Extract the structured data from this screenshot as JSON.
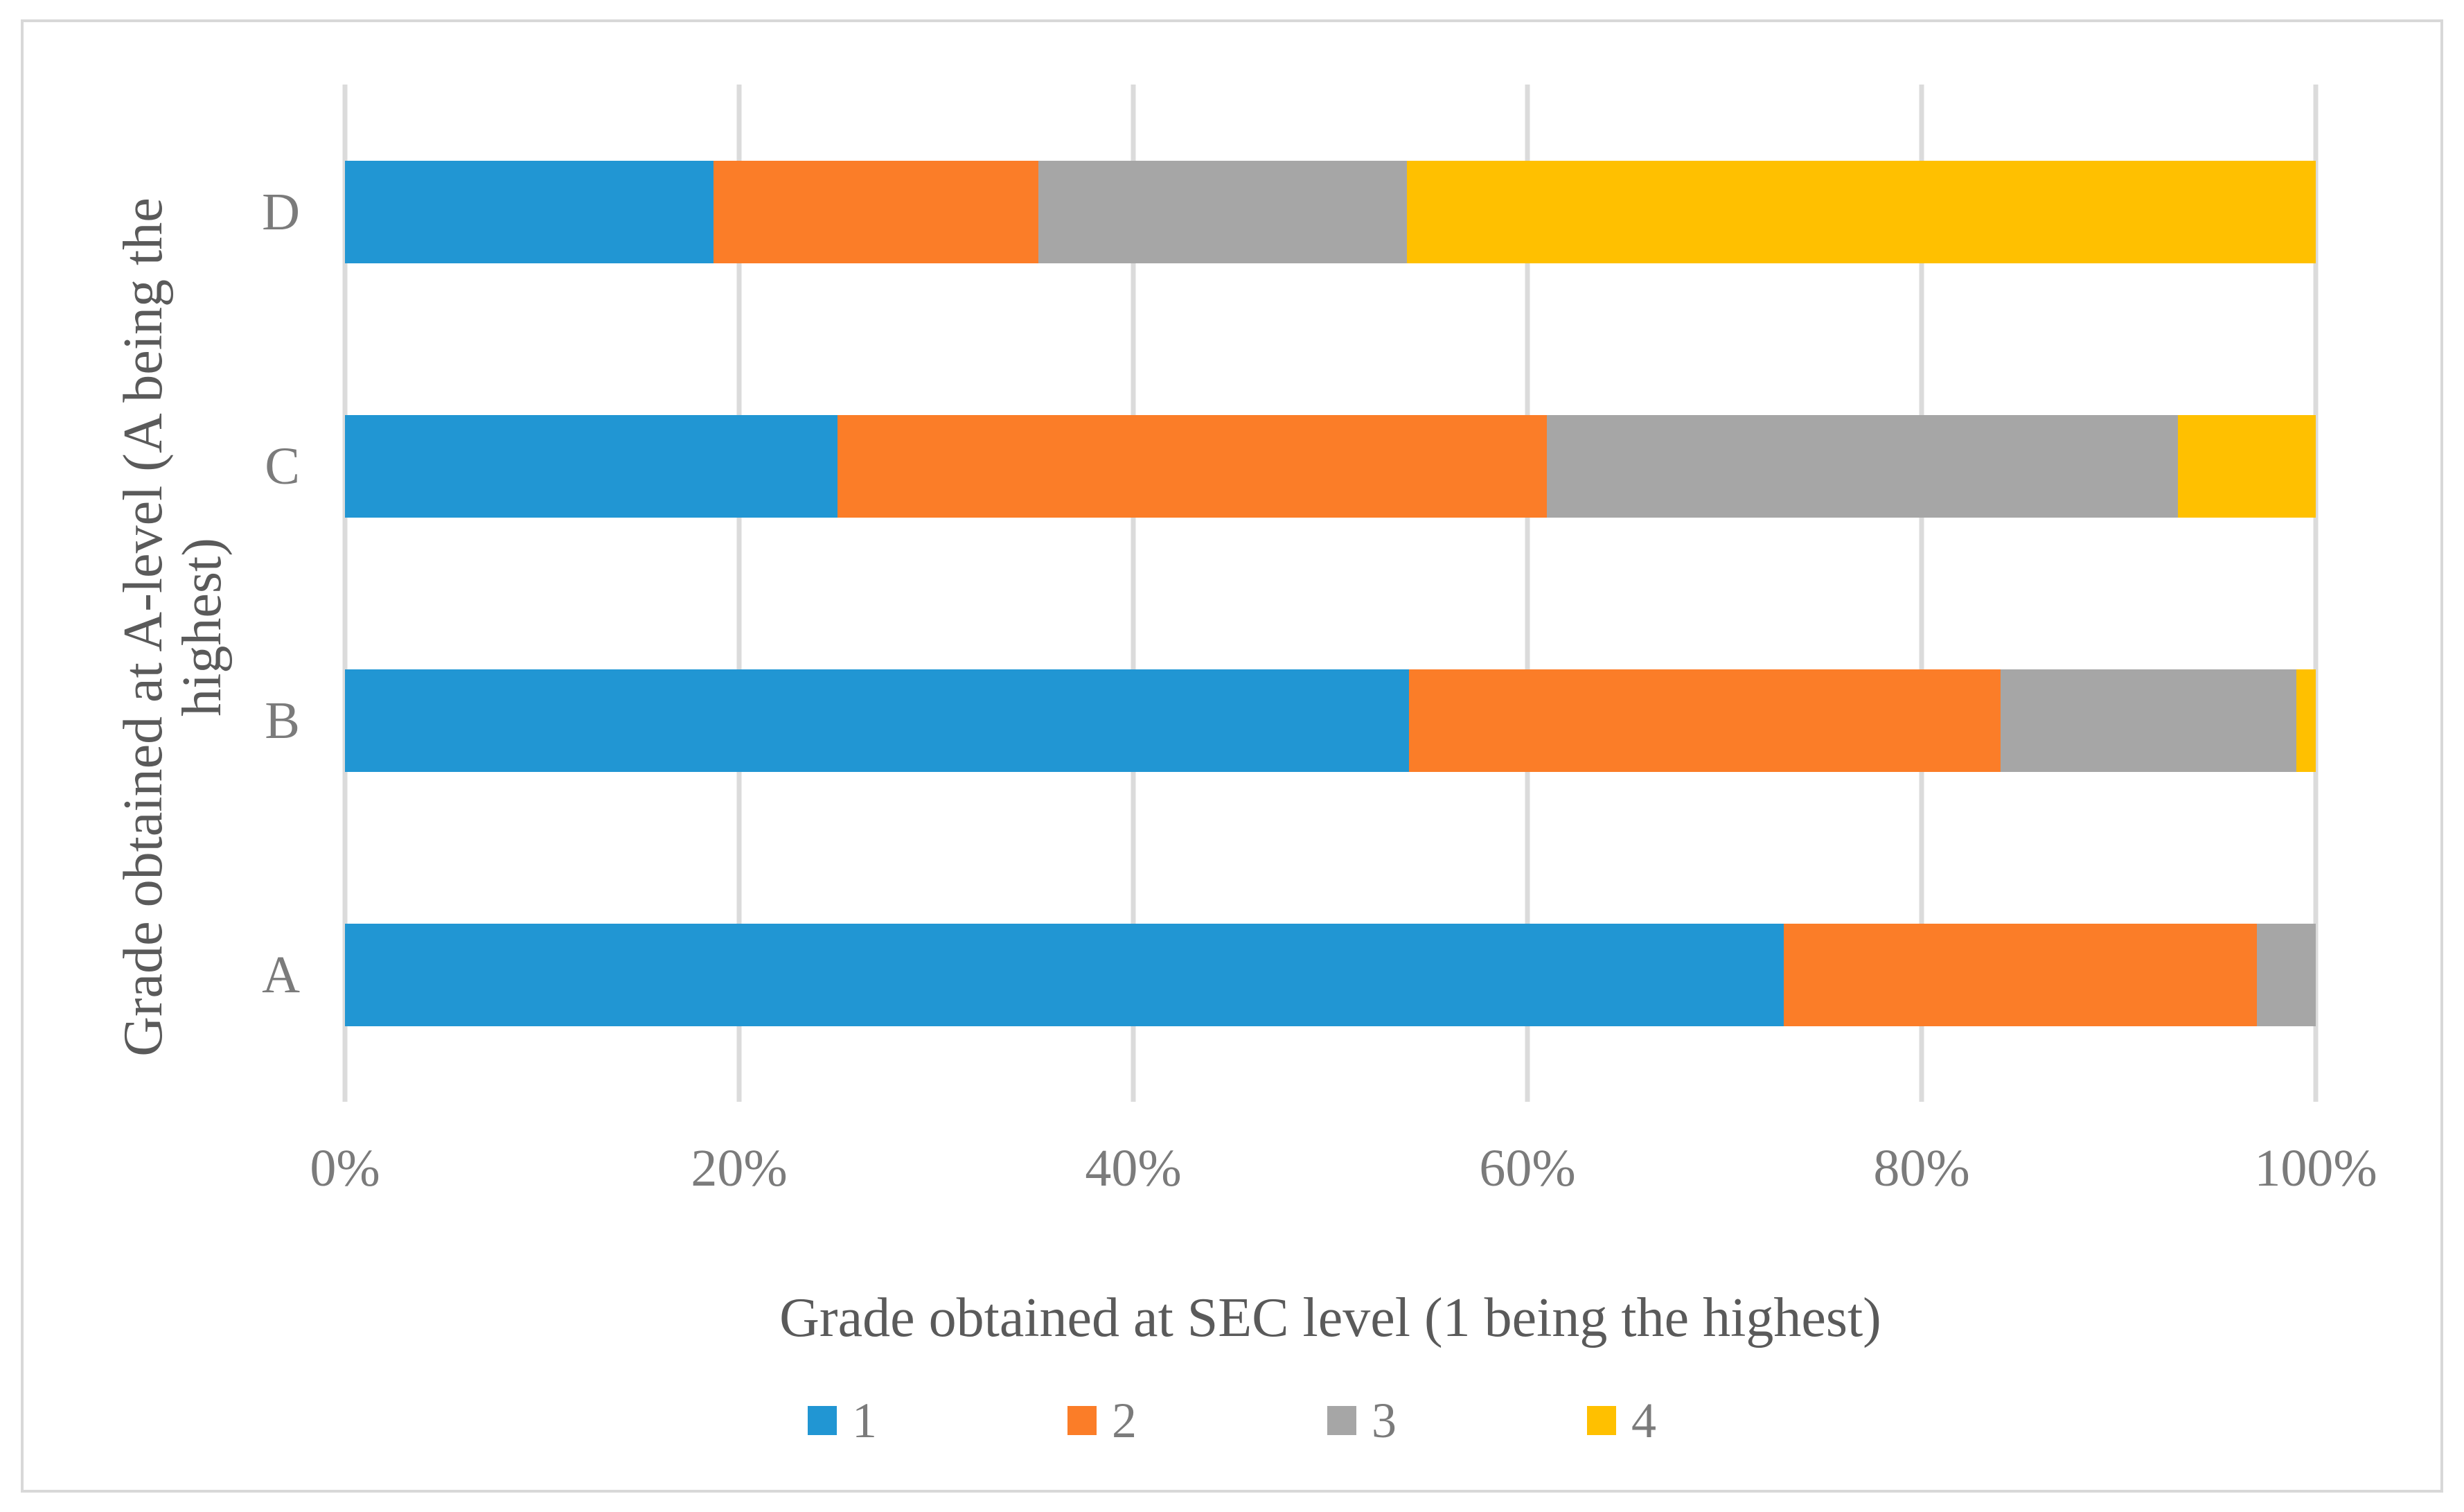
{
  "chart_data": {
    "type": "bar",
    "orientation": "horizontal",
    "stacked": true,
    "unit": "percent",
    "categories": [
      "D",
      "C",
      "B",
      "A"
    ],
    "series": [
      {
        "name": "1",
        "color": "#2196D3",
        "values": [
          18.7,
          25,
          54,
          73
        ]
      },
      {
        "name": "2",
        "color": "#FB7D28",
        "values": [
          16.5,
          36,
          30,
          24
        ]
      },
      {
        "name": "3",
        "color": "#A6A6A6",
        "values": [
          18.7,
          32,
          15,
          3
        ]
      },
      {
        "name": "4",
        "color": "#FFC000",
        "values": [
          46.1,
          7,
          1,
          0
        ]
      }
    ],
    "xlabel": "Grade obtained at SEC level (1 being the highest)",
    "ylabel": "Grade obtained at A-level (A being the highest)",
    "ylabel_display_lines": [
      "Grade obtained at A-level (A being the",
      "highest)"
    ],
    "x_ticks": [
      "0%",
      "20%",
      "40%",
      "60%",
      "80%",
      "100%"
    ],
    "xlim": [
      0,
      100
    ],
    "grid": "vertical-major",
    "legend": {
      "position": "bottom",
      "labels": [
        "1",
        "2",
        "3",
        "4"
      ]
    },
    "colors": {
      "gridline": "#DBDBDB",
      "frame_border": "#D8D8D8",
      "tick_text": "#7B7B7B",
      "title_text": "#5A5A5A",
      "background": "#FFFFFF"
    }
  }
}
